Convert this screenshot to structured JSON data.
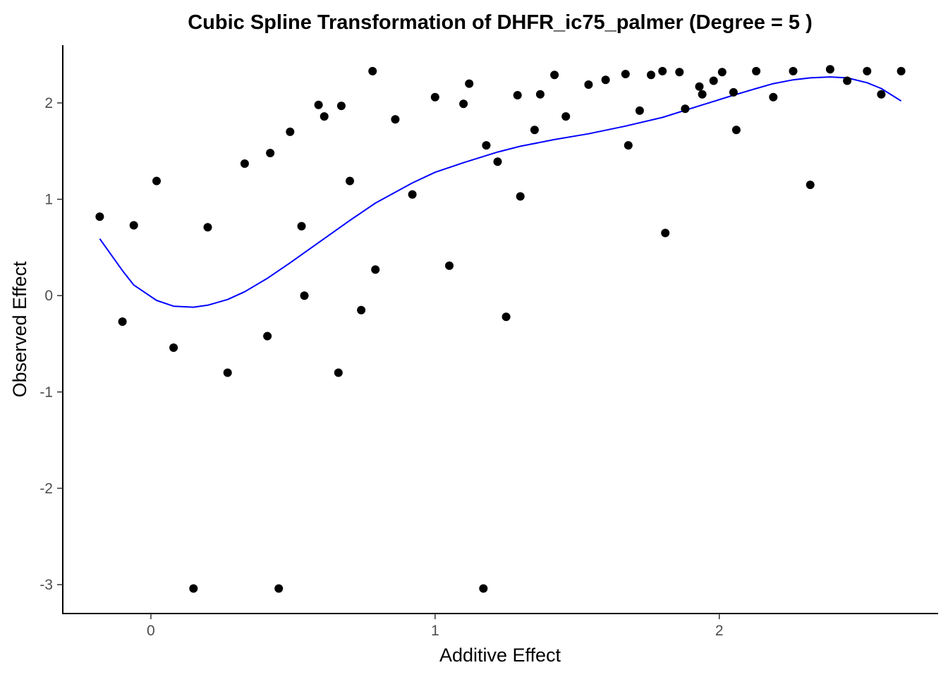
{
  "chart_data": {
    "type": "scatter",
    "title": "Cubic Spline Transformation of DHFR_ic75_palmer (Degree = 5 )",
    "xlabel": "Additive Effect",
    "ylabel": "Observed Effect",
    "xlim": [
      -0.31,
      2.77
    ],
    "ylim": [
      -3.3,
      2.6
    ],
    "x_ticks": [
      {
        "value": 0,
        "label": "0"
      },
      {
        "value": 1,
        "label": "1"
      },
      {
        "value": 2,
        "label": "2"
      }
    ],
    "y_ticks": [
      {
        "value": -3,
        "label": "-3"
      },
      {
        "value": -2,
        "label": "-2"
      },
      {
        "value": -1,
        "label": "-1"
      },
      {
        "value": 0,
        "label": "0"
      },
      {
        "value": 1,
        "label": "1"
      },
      {
        "value": 2,
        "label": "2"
      }
    ],
    "grid": false,
    "point_color": "#000000",
    "line_color": "#0000ff",
    "points": [
      {
        "x": -0.18,
        "y": 0.82
      },
      {
        "x": -0.1,
        "y": -0.27
      },
      {
        "x": -0.06,
        "y": 0.73
      },
      {
        "x": 0.02,
        "y": 1.19
      },
      {
        "x": 0.08,
        "y": -0.54
      },
      {
        "x": 0.15,
        "y": -3.04
      },
      {
        "x": 0.2,
        "y": 0.71
      },
      {
        "x": 0.27,
        "y": -0.8
      },
      {
        "x": 0.33,
        "y": 1.37
      },
      {
        "x": 0.41,
        "y": -0.42
      },
      {
        "x": 0.42,
        "y": 1.48
      },
      {
        "x": 0.45,
        "y": -3.04
      },
      {
        "x": 0.49,
        "y": 1.7
      },
      {
        "x": 0.53,
        "y": 0.72
      },
      {
        "x": 0.54,
        "y": 0.0
      },
      {
        "x": 0.59,
        "y": 1.98
      },
      {
        "x": 0.61,
        "y": 1.86
      },
      {
        "x": 0.66,
        "y": -0.8
      },
      {
        "x": 0.67,
        "y": 1.97
      },
      {
        "x": 0.7,
        "y": 1.19
      },
      {
        "x": 0.74,
        "y": -0.15
      },
      {
        "x": 0.78,
        "y": 2.33
      },
      {
        "x": 0.79,
        "y": 0.27
      },
      {
        "x": 0.86,
        "y": 1.83
      },
      {
        "x": 0.92,
        "y": 1.05
      },
      {
        "x": 1.0,
        "y": 2.06
      },
      {
        "x": 1.05,
        "y": 0.31
      },
      {
        "x": 1.1,
        "y": 1.99
      },
      {
        "x": 1.12,
        "y": 2.2
      },
      {
        "x": 1.17,
        "y": -3.04
      },
      {
        "x": 1.18,
        "y": 1.56
      },
      {
        "x": 1.22,
        "y": 1.39
      },
      {
        "x": 1.25,
        "y": -0.22
      },
      {
        "x": 1.29,
        "y": 2.08
      },
      {
        "x": 1.3,
        "y": 1.03
      },
      {
        "x": 1.35,
        "y": 1.72
      },
      {
        "x": 1.37,
        "y": 2.09
      },
      {
        "x": 1.42,
        "y": 2.29
      },
      {
        "x": 1.46,
        "y": 1.86
      },
      {
        "x": 1.54,
        "y": 2.19
      },
      {
        "x": 1.6,
        "y": 2.24
      },
      {
        "x": 1.67,
        "y": 2.3
      },
      {
        "x": 1.68,
        "y": 1.56
      },
      {
        "x": 1.72,
        "y": 1.92
      },
      {
        "x": 1.76,
        "y": 2.29
      },
      {
        "x": 1.8,
        "y": 2.33
      },
      {
        "x": 1.81,
        "y": 0.65
      },
      {
        "x": 1.86,
        "y": 2.32
      },
      {
        "x": 1.88,
        "y": 1.94
      },
      {
        "x": 1.93,
        "y": 2.17
      },
      {
        "x": 1.94,
        "y": 2.09
      },
      {
        "x": 1.98,
        "y": 2.23
      },
      {
        "x": 2.01,
        "y": 2.32
      },
      {
        "x": 2.05,
        "y": 2.11
      },
      {
        "x": 2.06,
        "y": 1.72
      },
      {
        "x": 2.13,
        "y": 2.33
      },
      {
        "x": 2.19,
        "y": 2.06
      },
      {
        "x": 2.26,
        "y": 2.33
      },
      {
        "x": 2.32,
        "y": 1.15
      },
      {
        "x": 2.39,
        "y": 2.35
      },
      {
        "x": 2.45,
        "y": 2.23
      },
      {
        "x": 2.52,
        "y": 2.33
      },
      {
        "x": 2.57,
        "y": 2.09
      },
      {
        "x": 2.64,
        "y": 2.33
      }
    ],
    "line": {
      "x": [
        -0.18,
        -0.1,
        -0.06,
        0.02,
        0.08,
        0.15,
        0.2,
        0.27,
        0.33,
        0.41,
        0.49,
        0.59,
        0.7,
        0.79,
        0.92,
        1.0,
        1.1,
        1.22,
        1.3,
        1.42,
        1.54,
        1.67,
        1.8,
        1.93,
        2.05,
        2.13,
        2.19,
        2.26,
        2.32,
        2.39,
        2.45,
        2.52,
        2.57,
        2.64
      ],
      "y": [
        0.59,
        0.26,
        0.11,
        -0.05,
        -0.11,
        -0.12,
        -0.1,
        -0.04,
        0.04,
        0.18,
        0.34,
        0.55,
        0.78,
        0.96,
        1.17,
        1.28,
        1.38,
        1.49,
        1.55,
        1.62,
        1.68,
        1.76,
        1.85,
        1.97,
        2.08,
        2.15,
        2.2,
        2.24,
        2.26,
        2.27,
        2.26,
        2.21,
        2.15,
        2.02
      ]
    }
  }
}
